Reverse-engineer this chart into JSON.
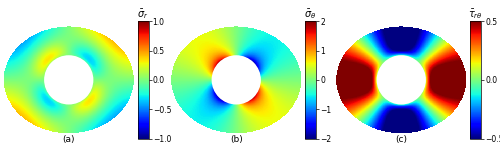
{
  "title_a": "$\\bar{\\sigma}_r$",
  "title_b": "$\\bar{\\sigma}_\\theta$",
  "title_c": "$\\bar{\\tau}_{r\\theta}$",
  "label_a": "(a)",
  "label_b": "(b)",
  "label_c": "(c)",
  "clim_a": [
    -1,
    1
  ],
  "clim_b": [
    -2,
    2
  ],
  "clim_c": [
    -0.5,
    0.5
  ],
  "cticks_a": [
    -1,
    -0.5,
    0,
    0.5,
    1
  ],
  "cticks_b": [
    -2,
    -1,
    0,
    1,
    2
  ],
  "cticks_c": [
    -0.5,
    0,
    0.5
  ],
  "R_inner": 0.35,
  "R_outer_a": 0.95,
  "R_outer_b": 0.78,
  "n_points": 500,
  "background_color": "#ffffff"
}
